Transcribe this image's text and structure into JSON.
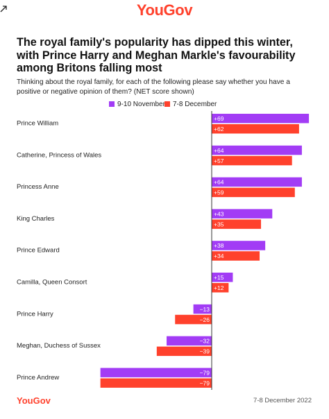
{
  "brand": {
    "logo_text": "YouGov"
  },
  "header": {
    "title": "The royal family's popularity has dipped this winter, with Prince Harry and Meghan Markle's favourability among Britons falling most",
    "subtitle": "Thinking about the royal family, for each of the following please say whether you have a positive or negative opinion of them? (NET score shown)"
  },
  "footer": {
    "logo_text": "YouGov",
    "date": "7-8 December 2022"
  },
  "colors": {
    "purple": "#a23cf5",
    "red": "#ff412c",
    "brand": "#ff412c"
  },
  "icons": {
    "corner": "external-link-icon"
  },
  "chart_data": {
    "type": "bar",
    "orientation": "horizontal",
    "categories": [
      "Prince William",
      "Catherine, Princess of Wales",
      "Princess Anne",
      "King Charles",
      "Prince Edward",
      "Camilla, Queen Consort",
      "Prince Harry",
      "Meghan, Duchess of Sussex",
      "Prince Andrew"
    ],
    "series": [
      {
        "name": "9-10 November",
        "color": "#a23cf5",
        "values": [
          69,
          64,
          64,
          43,
          38,
          15,
          -13,
          -32,
          -79
        ],
        "labels": [
          "+69",
          "+64",
          "+64",
          "+43",
          "+38",
          "+15",
          "−13",
          "−32",
          "−79"
        ]
      },
      {
        "name": "7-8 December",
        "color": "#ff412c",
        "values": [
          62,
          57,
          59,
          35,
          34,
          12,
          -26,
          -39,
          -79
        ],
        "labels": [
          "+62",
          "+57",
          "+59",
          "+35",
          "+34",
          "+12",
          "−26",
          "−39",
          "−79"
        ]
      }
    ],
    "legend_position": "top",
    "grid": false
  }
}
